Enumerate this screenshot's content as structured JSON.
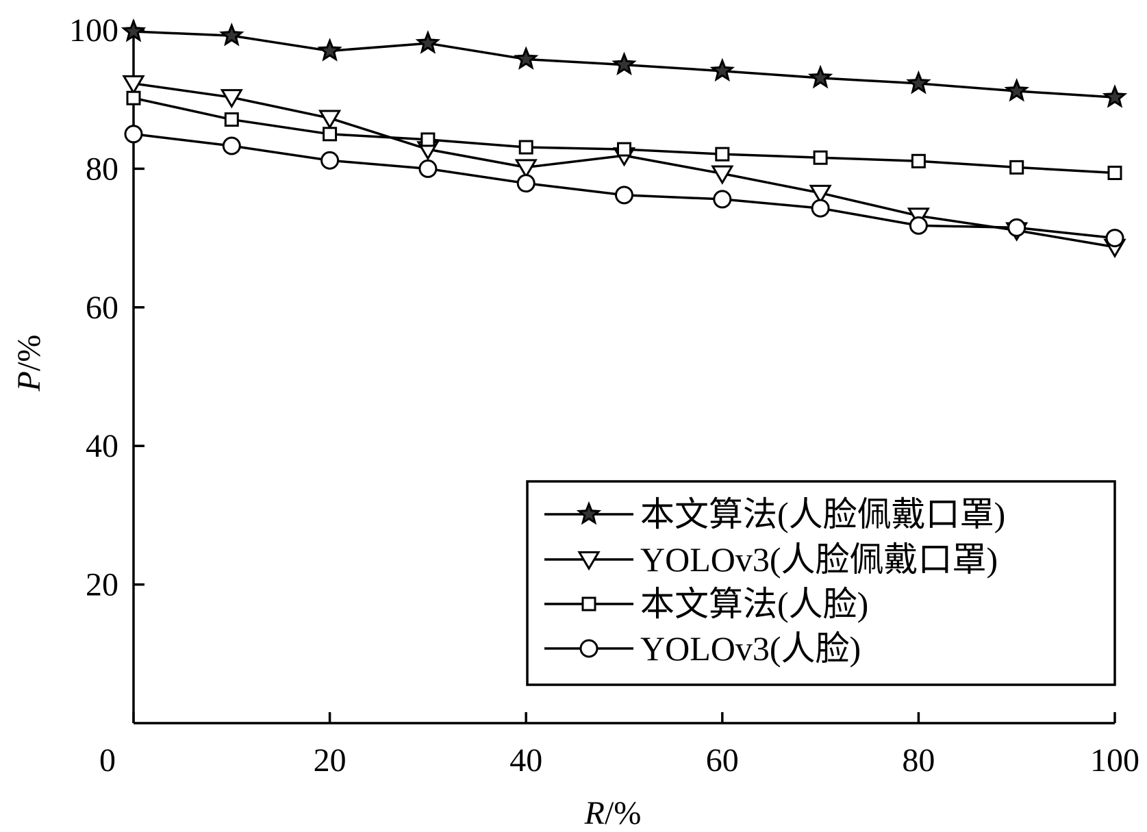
{
  "chart_data": {
    "type": "line",
    "xlabel": {
      "var": "R",
      "unit": "/%"
    },
    "ylabel": {
      "var": "P",
      "unit": "/%"
    },
    "xlim": [
      0,
      100
    ],
    "ylim": [
      0,
      100
    ],
    "x_ticks": [
      0,
      20,
      40,
      60,
      80,
      100
    ],
    "y_ticks": [
      20,
      40,
      60,
      80,
      100
    ],
    "x_tick_labels": [
      "0",
      "20",
      "40",
      "60",
      "80",
      "100"
    ],
    "y_tick_labels": [
      "20",
      "40",
      "60",
      "80",
      "100"
    ],
    "grid": false,
    "legend_position": "bottom-right",
    "x": [
      0,
      10,
      20,
      30,
      40,
      50,
      60,
      70,
      80,
      90,
      100
    ],
    "series": [
      {
        "name": "本文算法(人脸佩戴口罩)",
        "marker": "star",
        "values": [
          99.8,
          99.2,
          97.0,
          98.1,
          95.8,
          95.0,
          94.1,
          93.1,
          92.3,
          91.2,
          90.3
        ]
      },
      {
        "name": "YOLOv3(人脸佩戴口罩)",
        "marker": "triangle-down",
        "values": [
          92.3,
          90.3,
          87.3,
          82.8,
          80.2,
          81.9,
          79.3,
          76.5,
          73.2,
          71.1,
          68.7
        ]
      },
      {
        "name": "本文算法(人脸)",
        "marker": "square",
        "values": [
          90.2,
          87.1,
          85.0,
          84.2,
          83.1,
          82.8,
          82.1,
          81.6,
          81.1,
          80.2,
          79.4
        ]
      },
      {
        "name": "YOLOv3(人脸)",
        "marker": "circle",
        "values": [
          85.0,
          83.3,
          81.2,
          80.0,
          77.9,
          76.2,
          75.6,
          74.3,
          71.8,
          71.5,
          70.0
        ]
      }
    ]
  },
  "colors": {
    "line": "#000000",
    "background": "#ffffff"
  }
}
